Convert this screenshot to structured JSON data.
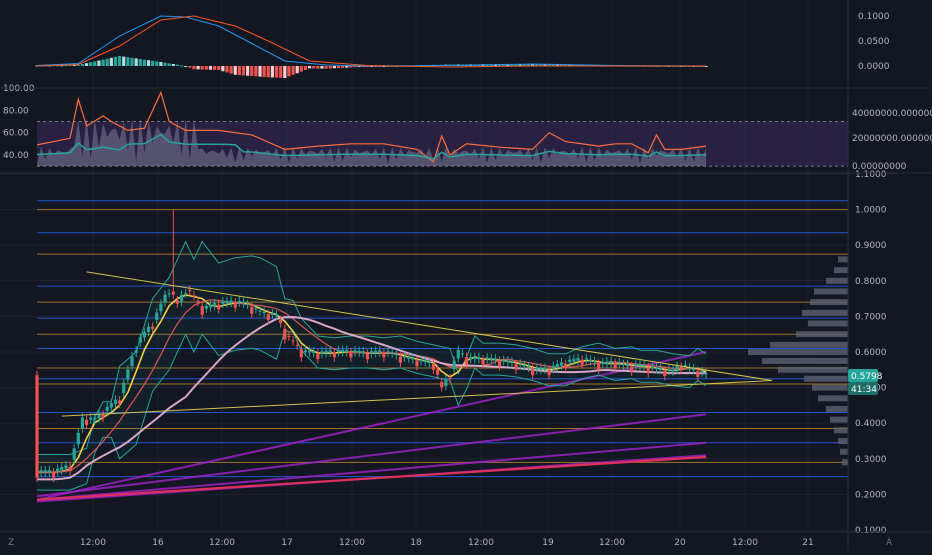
{
  "colors": {
    "background": "#131722",
    "grid": "#1e2230",
    "axis_text": "#b2b5be",
    "up": "#26a69a",
    "down": "#ef5350",
    "macd_line": "#2196f3",
    "signal_line": "#ff5722",
    "rsi_line": "#ff6d3a",
    "rsi_band": "#3b2a5c",
    "ema_yellow": "#f5d142",
    "ema_red": "#e05555",
    "ema_pink": "#d9a6c8",
    "boll": "#26a69a",
    "trend_yellow": "#d4c24a",
    "trend_purple": "#a020c8",
    "trend_red": "#e0305a",
    "hline_blue": "#2962ff",
    "hline_orange": "#c88a2e",
    "volume_profile": "#5d6170"
  },
  "panes": {
    "macd": {
      "yaxis_labels": [
        "0.1000",
        "0.0500",
        "0.0000"
      ]
    },
    "rsi": {
      "left_labels": [
        "100.00",
        "80.00",
        "60.00",
        "40.00"
      ],
      "right_labels": [
        "40000000.00000000",
        "20000000.00000000",
        "0.00000000"
      ]
    },
    "price": {
      "yaxis_labels": [
        "1.1000",
        "1.0000",
        "0.9000",
        "0.8000",
        "0.7000",
        "0.6000",
        "0.5000",
        "0.4000",
        "0.3000",
        "0.2000",
        "0.1000"
      ],
      "last_price": "0.5798",
      "countdown": "41:34"
    }
  },
  "xaxis": {
    "labels": [
      "12:00",
      "16",
      "12:00",
      "17",
      "12:00",
      "18",
      "12:00",
      "19",
      "12:00",
      "20",
      "12:00",
      "21"
    ]
  },
  "corner_icons": {
    "left": "Z",
    "right": "A"
  },
  "chart_data": {
    "type": "candlestick",
    "x_range": [
      "15 00:00",
      "21 06:00"
    ],
    "y_range": [
      0.1,
      1.1
    ],
    "scale": "linear",
    "grid": true,
    "price_curve": [
      [
        0,
        0.262
      ],
      [
        4,
        0.262
      ],
      [
        8,
        0.28
      ],
      [
        11,
        0.41
      ],
      [
        14,
        0.41
      ],
      [
        18,
        0.45
      ],
      [
        20,
        0.47
      ],
      [
        24,
        0.62
      ],
      [
        28,
        0.68
      ],
      [
        32,
        0.78
      ],
      [
        34,
        0.73
      ],
      [
        36,
        0.78
      ],
      [
        40,
        0.72
      ],
      [
        44,
        0.735
      ],
      [
        48,
        0.74
      ],
      [
        50,
        0.735
      ],
      [
        54,
        0.71
      ],
      [
        58,
        0.7
      ],
      [
        60,
        0.65
      ],
      [
        64,
        0.6
      ],
      [
        68,
        0.595
      ],
      [
        72,
        0.6
      ],
      [
        76,
        0.6
      ],
      [
        80,
        0.595
      ],
      [
        84,
        0.6
      ],
      [
        88,
        0.585
      ],
      [
        92,
        0.575
      ],
      [
        96,
        0.565
      ],
      [
        98,
        0.495
      ],
      [
        100,
        0.54
      ],
      [
        102,
        0.6
      ],
      [
        104,
        0.58
      ],
      [
        108,
        0.58
      ],
      [
        112,
        0.575
      ],
      [
        116,
        0.565
      ],
      [
        120,
        0.55
      ],
      [
        124,
        0.55
      ],
      [
        128,
        0.57
      ],
      [
        132,
        0.58
      ],
      [
        136,
        0.565
      ],
      [
        140,
        0.57
      ],
      [
        142,
        0.56
      ],
      [
        146,
        0.56
      ],
      [
        150,
        0.55
      ],
      [
        154,
        0.545
      ],
      [
        156,
        0.565
      ],
      [
        158,
        0.55
      ],
      [
        160,
        0.545
      ],
      [
        162,
        0.535
      ]
    ],
    "wick_high": 1.0,
    "wick_high_at": 33,
    "macd": {
      "macd": [
        [
          0,
          0.001
        ],
        [
          10,
          0.005
        ],
        [
          20,
          0.06
        ],
        [
          30,
          0.1
        ],
        [
          36,
          0.098
        ],
        [
          44,
          0.08
        ],
        [
          52,
          0.045
        ],
        [
          60,
          0.01
        ],
        [
          70,
          0.002
        ],
        [
          80,
          0.0
        ],
        [
          100,
          0.001
        ],
        [
          120,
          0.004
        ],
        [
          140,
          0.001
        ],
        [
          162,
          0.0
        ]
      ],
      "signal": [
        [
          0,
          0.0
        ],
        [
          10,
          0.003
        ],
        [
          20,
          0.04
        ],
        [
          30,
          0.092
        ],
        [
          38,
          0.1
        ],
        [
          48,
          0.08
        ],
        [
          56,
          0.05
        ],
        [
          66,
          0.01
        ],
        [
          80,
          0.001
        ],
        [
          100,
          -0.002
        ],
        [
          120,
          0.0
        ],
        [
          140,
          0.0
        ],
        [
          162,
          0.0
        ]
      ]
    },
    "rsi": [
      [
        0,
        49
      ],
      [
        8,
        55
      ],
      [
        10,
        90
      ],
      [
        12,
        66
      ],
      [
        16,
        75
      ],
      [
        18,
        70
      ],
      [
        22,
        62
      ],
      [
        26,
        64
      ],
      [
        30,
        96
      ],
      [
        32,
        70
      ],
      [
        36,
        62
      ],
      [
        44,
        62
      ],
      [
        52,
        58
      ],
      [
        60,
        45
      ],
      [
        68,
        48
      ],
      [
        76,
        50
      ],
      [
        84,
        50
      ],
      [
        92,
        45
      ],
      [
        96,
        34
      ],
      [
        98,
        57
      ],
      [
        100,
        40
      ],
      [
        104,
        50
      ],
      [
        112,
        47
      ],
      [
        120,
        45
      ],
      [
        124,
        60
      ],
      [
        128,
        52
      ],
      [
        136,
        48
      ],
      [
        140,
        50
      ],
      [
        144,
        50
      ],
      [
        148,
        42
      ],
      [
        150,
        58
      ],
      [
        152,
        45
      ],
      [
        156,
        45
      ],
      [
        162,
        48
      ]
    ],
    "horizontal_levels": [
      0.25,
      0.29,
      0.345,
      0.385,
      0.43,
      0.51,
      0.525,
      0.555,
      0.61,
      0.65,
      0.695,
      0.74,
      0.785,
      0.875,
      0.935,
      1.0,
      1.025
    ],
    "triangle": {
      "upper": [
        [
          12,
          0.825
        ],
        [
          178,
          0.52
        ]
      ],
      "lower": [
        [
          6,
          0.42
        ],
        [
          178,
          0.52
        ]
      ]
    },
    "purple_lines": [
      [
        [
          0,
          0.195
        ],
        [
          162,
          0.425
        ]
      ],
      [
        [
          0,
          0.185
        ],
        [
          162,
          0.345
        ]
      ],
      [
        [
          0,
          0.18
        ],
        [
          162,
          0.31
        ]
      ],
      [
        [
          0,
          0.185
        ],
        [
          162,
          0.6
        ]
      ]
    ],
    "red_line": [
      [
        0,
        0.185
      ],
      [
        162,
        0.305
      ]
    ]
  }
}
